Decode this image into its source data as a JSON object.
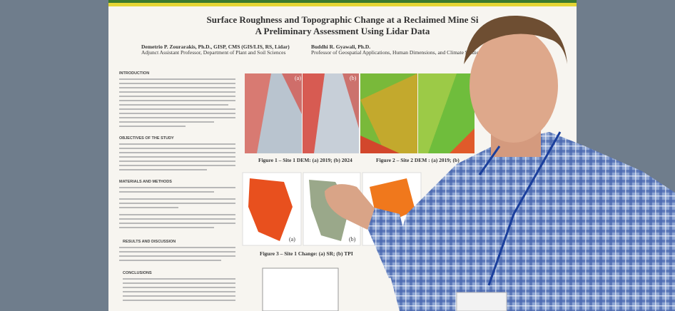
{
  "poster": {
    "title": "Surface Roughness and Topographic Change at a Reclaimed Mine Si",
    "subtitle": "A Preliminary Assessment Using Lidar Data",
    "authors": [
      {
        "name": "Demetrio P. Zourarakis, Ph.D., GISP, CMS (GIS/LIS, RS, Lidar)",
        "affiliation": "Adjunct Assistant Professor, Department of Plant and Soil Sciences"
      },
      {
        "name": "Buddhi R. Gyawali, Ph.D.",
        "affiliation": "Professor of Geospatial Applications, Human Dimensions, and Climate Studies"
      }
    ],
    "sections": [
      "INTRODUCTION",
      "OBJECTIVES OF THE STUDY",
      "MATERIALS AND METHODS",
      "RESULTS AND DISCUSSION",
      "CONCLUSIONS"
    ],
    "captions": [
      "Figure 1 – Site 1 DEM: (a) 2019; (b) 2024",
      "Figure 2 – Site 2 DEM : (a) 2019; (b)",
      "Figure 3 – Site 1 Change: (a) SR; (b) TPI"
    ],
    "panel_labels": [
      "(a)",
      "(b)"
    ]
  }
}
